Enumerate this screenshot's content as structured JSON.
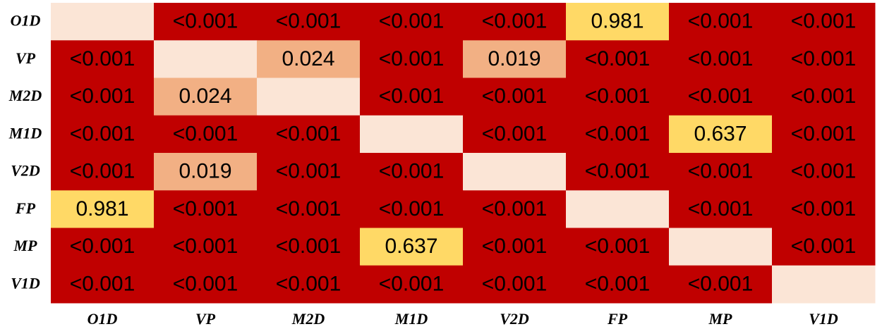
{
  "chart_data": {
    "type": "heatmap",
    "title": "",
    "xlabel": "",
    "ylabel": "",
    "row_labels": [
      "O1D",
      "VP",
      "M2D",
      "M1D",
      "V2D",
      "FP",
      "MP",
      "V1D"
    ],
    "col_labels": [
      "O1D",
      "VP",
      "M2D",
      "M1D",
      "V2D",
      "FP",
      "MP",
      "V1D"
    ],
    "cells": [
      [
        "",
        "<0.001",
        "<0.001",
        "<0.001",
        "<0.001",
        "0.981",
        "<0.001",
        "<0.001"
      ],
      [
        "<0.001",
        "",
        "0.024",
        "<0.001",
        "0.019",
        "<0.001",
        "<0.001",
        "<0.001"
      ],
      [
        "<0.001",
        "0.024",
        "",
        "<0.001",
        "<0.001",
        "<0.001",
        "<0.001",
        "<0.001"
      ],
      [
        "<0.001",
        "<0.001",
        "<0.001",
        "",
        "<0.001",
        "<0.001",
        "0.637",
        "<0.001"
      ],
      [
        "<0.001",
        "0.019",
        "<0.001",
        "<0.001",
        "",
        "<0.001",
        "<0.001",
        "<0.001"
      ],
      [
        "0.981",
        "<0.001",
        "<0.001",
        "<0.001",
        "<0.001",
        "",
        "<0.001",
        "<0.001"
      ],
      [
        "<0.001",
        "<0.001",
        "<0.001",
        "0.637",
        "<0.001",
        "<0.001",
        "",
        "<0.001"
      ],
      [
        "<0.001",
        "<0.001",
        "<0.001",
        "<0.001",
        "<0.001",
        "<0.001",
        "<0.001",
        ""
      ]
    ],
    "colors": {
      "significant": "#C00000",
      "low": "#F2B084",
      "high": "#FFD966",
      "diagonal": "#FBE5D6"
    },
    "grid": false,
    "legend": "none"
  }
}
